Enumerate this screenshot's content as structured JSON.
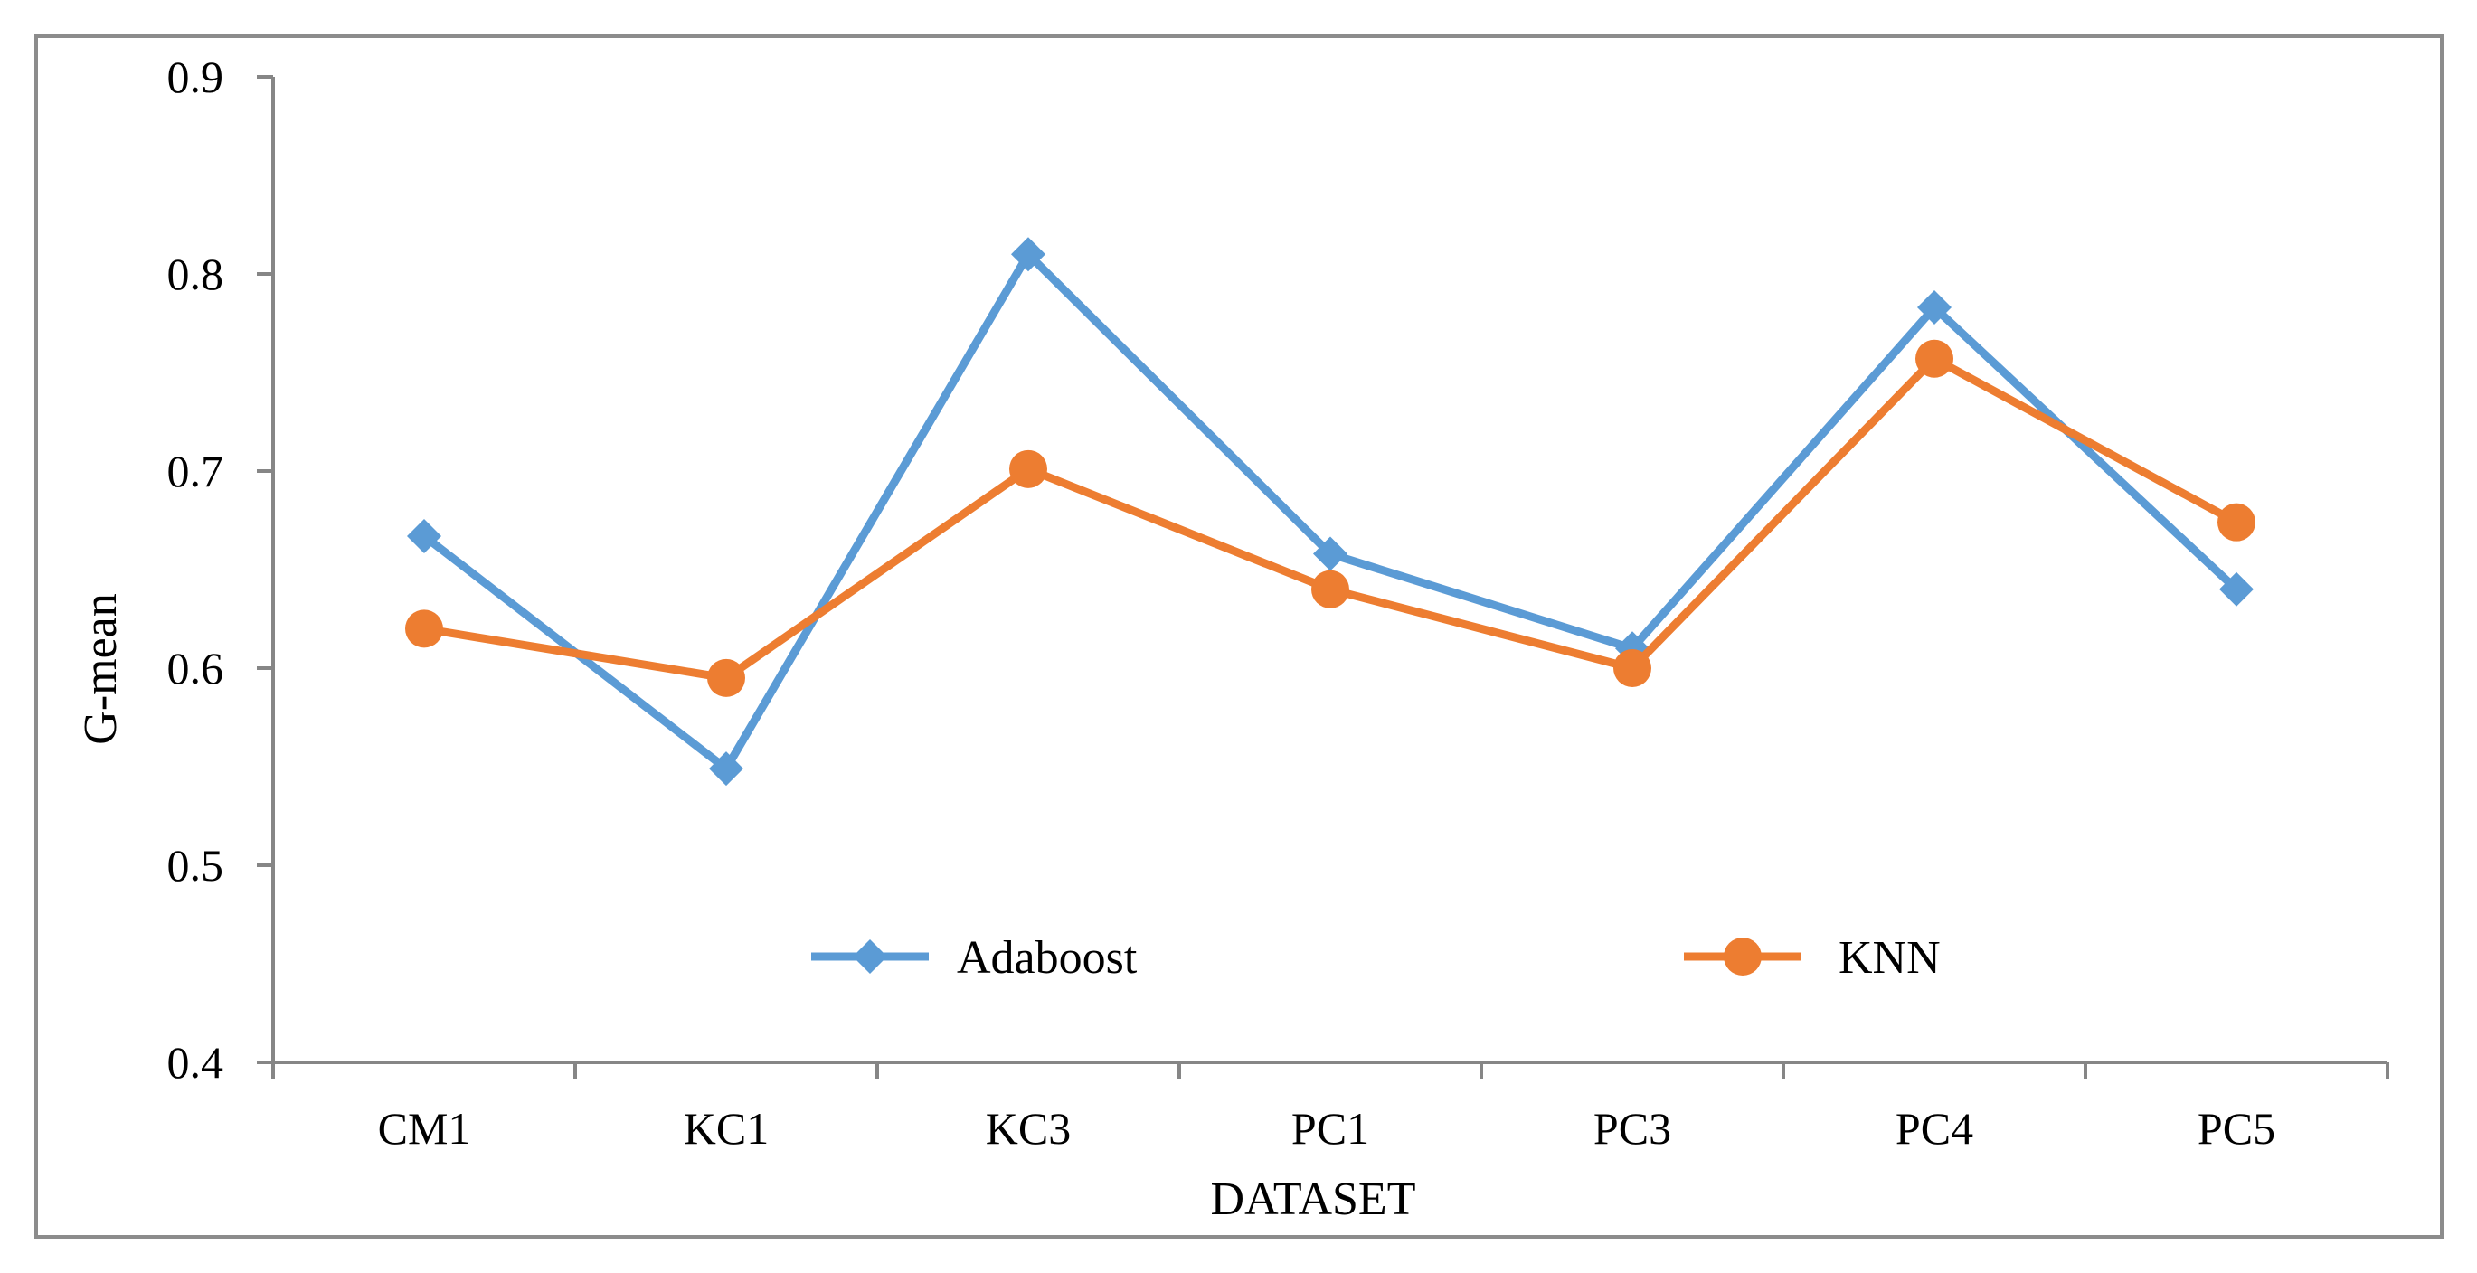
{
  "chart_data": {
    "type": "line",
    "title": "",
    "xlabel": "DATASET",
    "ylabel": "G-mean",
    "categories": [
      "CM1",
      "KC1",
      "KC3",
      "PC1",
      "PC3",
      "PC4",
      "PC5"
    ],
    "ylim": [
      0.4,
      0.9
    ],
    "yticks": [
      0.4,
      0.5,
      0.6,
      0.7,
      0.8,
      0.9
    ],
    "ytick_labels": [
      "0.4",
      "0.5",
      "0.6",
      "0.7",
      "0.8",
      "0.9"
    ],
    "grid": false,
    "legend_position": "inside-bottom",
    "series": [
      {
        "name": "Adaboost",
        "marker": "diamond",
        "color": "#5B9BD5",
        "values": [
          0.667,
          0.549,
          0.81,
          0.658,
          0.61,
          0.783,
          0.64
        ]
      },
      {
        "name": "KNN",
        "marker": "circle",
        "color": "#ED7D31",
        "values": [
          0.62,
          0.595,
          0.701,
          0.64,
          0.6,
          0.757,
          0.674
        ]
      }
    ]
  }
}
